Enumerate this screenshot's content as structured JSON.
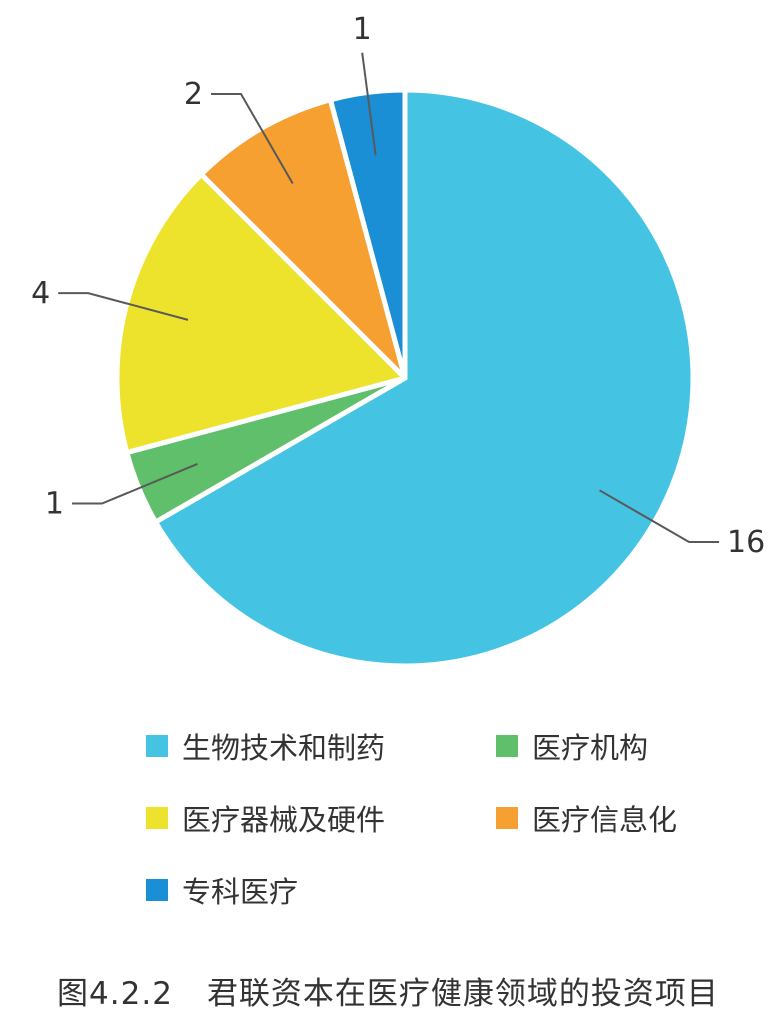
{
  "chart_data": {
    "type": "pie",
    "start_angle_deg": 0,
    "direction": "clockwise",
    "slices": [
      {
        "label": "生物技术和制药",
        "value": 16,
        "color": "#45C3E3"
      },
      {
        "label": "医疗机构",
        "value": 1,
        "color": "#5FBF6A"
      },
      {
        "label": "医疗器械及硬件",
        "value": 4,
        "color": "#EDE32C"
      },
      {
        "label": "医疗信息化",
        "value": 2,
        "color": "#F5A030"
      },
      {
        "label": "专科医疗",
        "value": 1,
        "color": "#1A8FD6"
      }
    ],
    "legend_placement": "bottom"
  },
  "caption": {
    "number": "图4.2.2",
    "text": "君联资本在医疗健康领域的投资项目"
  }
}
